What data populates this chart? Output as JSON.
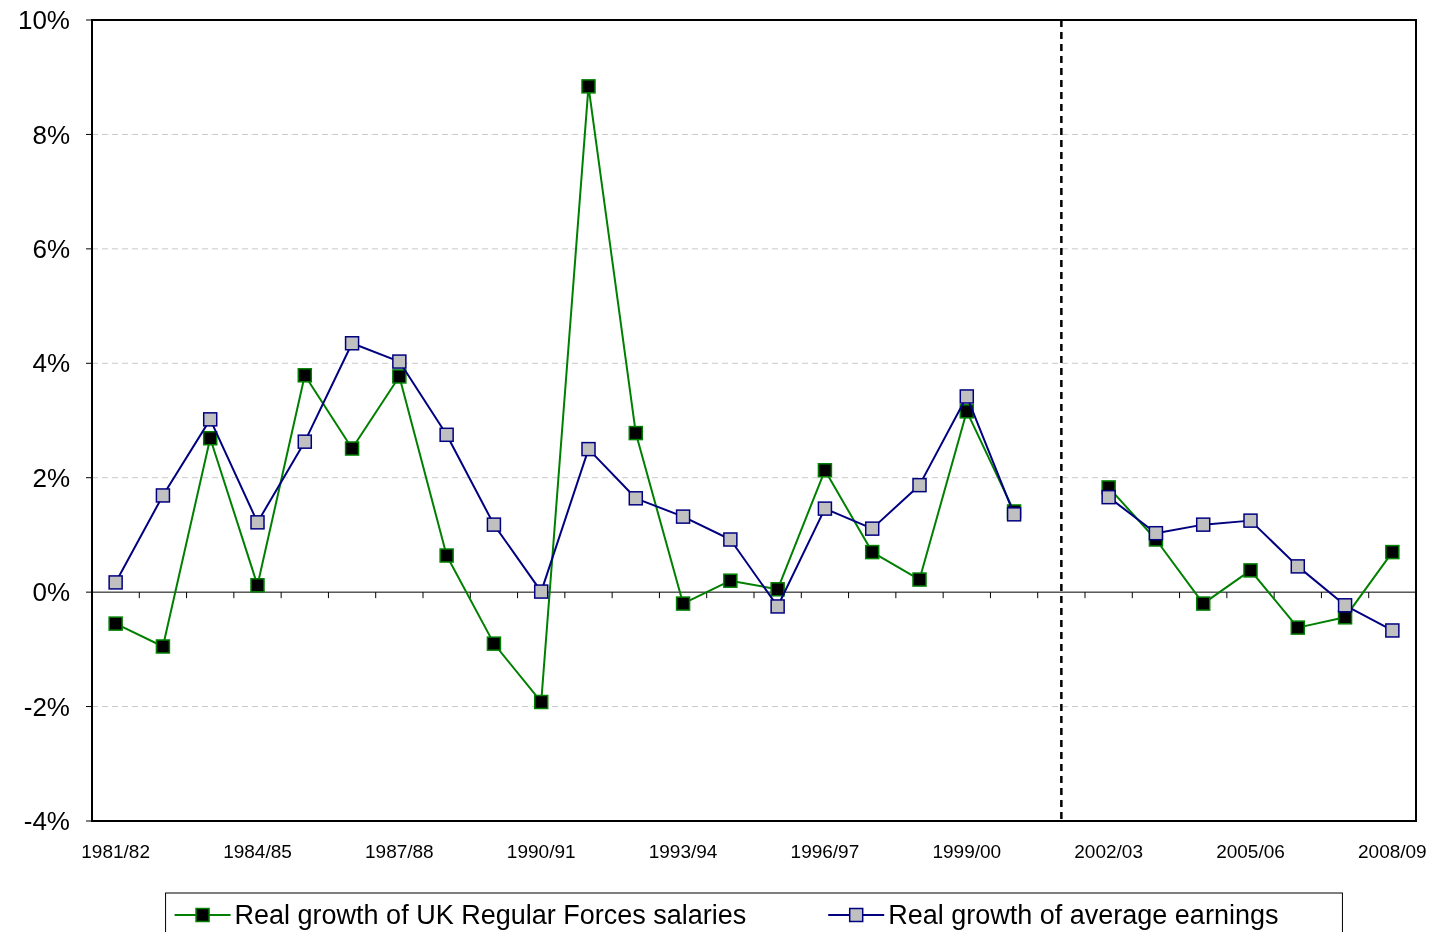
{
  "chart_data": {
    "type": "line",
    "categories": [
      "1981/82",
      null,
      null,
      "1984/85",
      null,
      null,
      "1987/88",
      null,
      null,
      "1990/91",
      null,
      null,
      "1993/94",
      null,
      null,
      "1996/97",
      null,
      null,
      "1999/00",
      null,
      null,
      "2002/03",
      null,
      null,
      "2005/06",
      null,
      null,
      "2008/09"
    ],
    "series": [
      {
        "name": "Real growth of UK Regular Forces salaries",
        "color": "#008000",
        "values": [
          -0.55,
          -0.95,
          2.69,
          0.12,
          3.79,
          2.51,
          3.77,
          0.64,
          -0.9,
          -1.92,
          8.84,
          2.78,
          -0.2,
          0.2,
          0.05,
          2.13,
          0.7,
          0.22,
          3.16,
          1.41,
          null,
          1.83,
          0.92,
          -0.2,
          0.38,
          -0.62,
          -0.44,
          0.7
        ]
      },
      {
        "name": "Real growth of average earnings",
        "color": "#000080",
        "values": [
          0.17,
          1.69,
          3.02,
          1.22,
          2.63,
          4.35,
          4.03,
          2.75,
          1.18,
          0.01,
          2.5,
          1.64,
          1.32,
          0.92,
          -0.25,
          1.46,
          1.11,
          1.87,
          3.42,
          1.36,
          null,
          1.66,
          1.03,
          1.18,
          1.25,
          0.45,
          -0.23,
          -0.67
        ]
      }
    ],
    "ylim": [
      -4,
      10
    ],
    "yticks": [
      {
        "value": -4,
        "label": "-4%"
      },
      {
        "value": -2,
        "label": "-2%"
      },
      {
        "value": 0,
        "label": "0%"
      },
      {
        "value": 2,
        "label": "2%"
      },
      {
        "value": 4,
        "label": "4%"
      },
      {
        "value": 6,
        "label": "6%"
      },
      {
        "value": 8,
        "label": "8%"
      },
      {
        "value": 10,
        "label": "10%"
      }
    ],
    "grid": "y",
    "legend": "bottom",
    "marker": "square",
    "line_style": "solid"
  }
}
